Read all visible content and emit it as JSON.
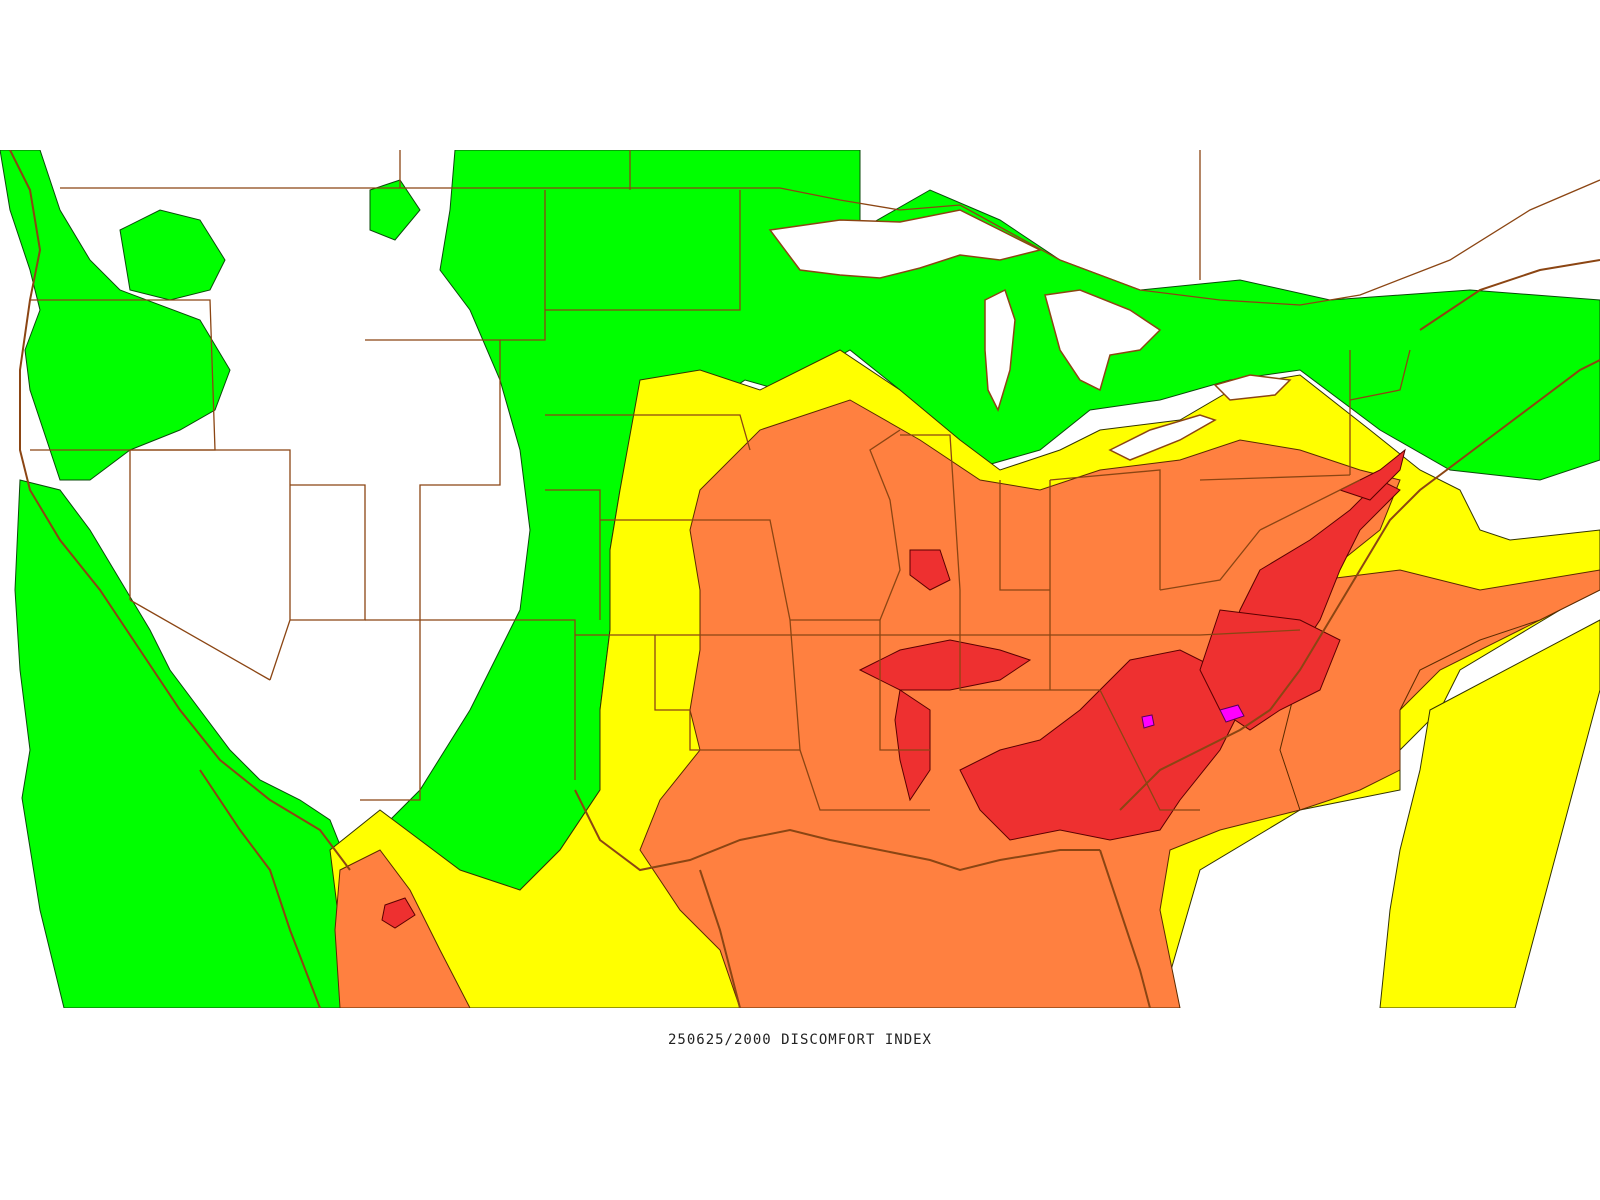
{
  "caption": {
    "text": "250625/2000 DISCOMFORT INDEX"
  },
  "colors": {
    "background": "#ffffff",
    "green": "#00ff00",
    "yellow": "#ffff00",
    "orange": "#ff8040",
    "red": "#ee3030",
    "magenta": "#ff00ff",
    "boundary": "#8b4513"
  },
  "legend_levels": [
    "green",
    "yellow",
    "orange",
    "red",
    "magenta"
  ]
}
